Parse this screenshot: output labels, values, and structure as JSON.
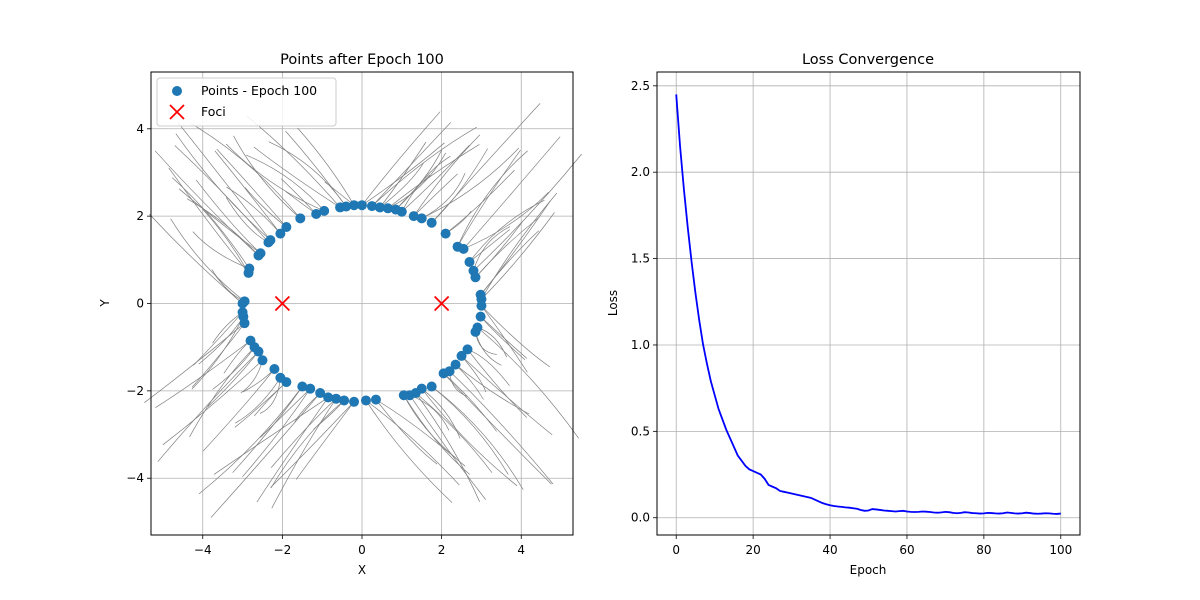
{
  "chart_data": [
    {
      "type": "scatter",
      "title": "Points after Epoch 100",
      "xlabel": "X",
      "ylabel": "Y",
      "xlim": [
        -5.3,
        5.3
      ],
      "ylim": [
        -5.3,
        5.3
      ],
      "xticks": [
        -4,
        -2,
        0,
        2,
        4
      ],
      "yticks": [
        -4,
        -2,
        0,
        2,
        4
      ],
      "xtick_labels": [
        "−4",
        "−2",
        "0",
        "2",
        "4"
      ],
      "ytick_labels": [
        "−4",
        "−2",
        "0",
        "2",
        "4"
      ],
      "grid": true,
      "legend_position": "upper-left",
      "trajectory_color": "#808080",
      "series": [
        {
          "name": "Points - Epoch 100",
          "marker": "circle",
          "color": "#1f77b4",
          "points": [
            [
              -0.2,
              2.25
            ],
            [
              0.0,
              2.25
            ],
            [
              0.25,
              2.23
            ],
            [
              0.45,
              2.2
            ],
            [
              0.65,
              2.18
            ],
            [
              0.85,
              2.15
            ],
            [
              1.0,
              2.1
            ],
            [
              1.3,
              2.0
            ],
            [
              1.5,
              1.95
            ],
            [
              1.75,
              1.85
            ],
            [
              2.1,
              1.6
            ],
            [
              2.4,
              1.3
            ],
            [
              2.55,
              1.25
            ],
            [
              2.7,
              0.95
            ],
            [
              2.8,
              0.75
            ],
            [
              2.85,
              0.6
            ],
            [
              2.98,
              0.2
            ],
            [
              3.0,
              0.1
            ],
            [
              3.0,
              -0.05
            ],
            [
              2.98,
              -0.3
            ],
            [
              2.9,
              -0.55
            ],
            [
              2.85,
              -0.65
            ],
            [
              2.65,
              -1.05
            ],
            [
              2.5,
              -1.2
            ],
            [
              2.35,
              -1.4
            ],
            [
              2.2,
              -1.55
            ],
            [
              2.05,
              -1.6
            ],
            [
              1.75,
              -1.9
            ],
            [
              1.5,
              -1.95
            ],
            [
              1.35,
              -2.05
            ],
            [
              1.2,
              -2.1
            ],
            [
              1.05,
              -2.1
            ],
            [
              0.35,
              -2.2
            ],
            [
              0.1,
              -2.22
            ],
            [
              -0.2,
              -2.25
            ],
            [
              -0.45,
              -2.22
            ],
            [
              -0.65,
              -2.18
            ],
            [
              -0.85,
              -2.15
            ],
            [
              -1.05,
              -2.05
            ],
            [
              -1.3,
              -1.95
            ],
            [
              -1.5,
              -1.9
            ],
            [
              -1.9,
              -1.8
            ],
            [
              -2.05,
              -1.7
            ],
            [
              -2.2,
              -1.5
            ],
            [
              -2.5,
              -1.3
            ],
            [
              -2.6,
              -1.1
            ],
            [
              -2.7,
              -1.0
            ],
            [
              -2.8,
              -0.85
            ],
            [
              -2.95,
              -0.45
            ],
            [
              -2.98,
              -0.3
            ],
            [
              -3.0,
              -0.2
            ],
            [
              -3.0,
              0.0
            ],
            [
              -2.95,
              0.05
            ],
            [
              -2.85,
              0.7
            ],
            [
              -2.83,
              0.8
            ],
            [
              -2.6,
              1.1
            ],
            [
              -2.55,
              1.15
            ],
            [
              -2.35,
              1.4
            ],
            [
              -2.3,
              1.45
            ],
            [
              -2.05,
              1.6
            ],
            [
              -1.9,
              1.75
            ],
            [
              -1.55,
              1.95
            ],
            [
              -1.15,
              2.05
            ],
            [
              -0.95,
              2.12
            ],
            [
              -0.55,
              2.2
            ],
            [
              -0.4,
              2.22
            ]
          ]
        },
        {
          "name": "Foci",
          "marker": "x",
          "color": "#ff0000",
          "points": [
            [
              -2,
              0
            ],
            [
              2,
              0
            ]
          ]
        }
      ]
    },
    {
      "type": "line",
      "title": "Loss Convergence",
      "xlabel": "Epoch",
      "ylabel": "Loss",
      "xlim": [
        -5,
        105
      ],
      "ylim": [
        -0.1,
        2.58
      ],
      "xticks": [
        0,
        20,
        40,
        60,
        80,
        100
      ],
      "yticks": [
        0.0,
        0.5,
        1.0,
        1.5,
        2.0,
        2.5
      ],
      "xtick_labels": [
        "0",
        "20",
        "40",
        "60",
        "80",
        "100"
      ],
      "ytick_labels": [
        "0.0",
        "0.5",
        "1.0",
        "1.5",
        "2.0",
        "2.5"
      ],
      "grid": true,
      "series": [
        {
          "color": "#0000ff",
          "x": [
            0,
            1,
            2,
            3,
            4,
            5,
            6,
            7,
            8,
            9,
            10,
            11,
            12,
            13,
            14,
            15,
            16,
            17,
            18,
            19,
            20,
            21,
            22,
            23,
            24,
            25,
            26,
            27,
            28,
            29,
            30,
            31,
            32,
            33,
            34,
            35,
            36,
            37,
            38,
            39,
            40,
            41,
            42,
            43,
            44,
            45,
            46,
            47,
            48,
            49,
            50,
            51,
            52,
            53,
            54,
            55,
            56,
            57,
            58,
            59,
            60,
            61,
            62,
            63,
            64,
            65,
            66,
            67,
            68,
            69,
            70,
            71,
            72,
            73,
            74,
            75,
            76,
            77,
            78,
            79,
            80,
            81,
            82,
            83,
            84,
            85,
            86,
            87,
            88,
            89,
            90,
            91,
            92,
            93,
            94,
            95,
            96,
            97,
            98,
            99,
            100
          ],
          "y": [
            2.45,
            2.15,
            1.9,
            1.68,
            1.48,
            1.3,
            1.14,
            1.0,
            0.89,
            0.79,
            0.71,
            0.63,
            0.57,
            0.51,
            0.46,
            0.41,
            0.36,
            0.33,
            0.3,
            0.28,
            0.27,
            0.26,
            0.25,
            0.225,
            0.19,
            0.18,
            0.17,
            0.155,
            0.15,
            0.145,
            0.14,
            0.135,
            0.13,
            0.125,
            0.12,
            0.115,
            0.105,
            0.095,
            0.085,
            0.078,
            0.072,
            0.068,
            0.065,
            0.063,
            0.06,
            0.058,
            0.055,
            0.052,
            0.045,
            0.04,
            0.042,
            0.05,
            0.048,
            0.045,
            0.042,
            0.04,
            0.038,
            0.036,
            0.038,
            0.04,
            0.036,
            0.034,
            0.033,
            0.034,
            0.036,
            0.035,
            0.033,
            0.03,
            0.029,
            0.031,
            0.034,
            0.032,
            0.028,
            0.026,
            0.028,
            0.032,
            0.03,
            0.027,
            0.026,
            0.024,
            0.025,
            0.028,
            0.027,
            0.025,
            0.024,
            0.026,
            0.03,
            0.028,
            0.025,
            0.024,
            0.026,
            0.029,
            0.027,
            0.024,
            0.023,
            0.024,
            0.026,
            0.025,
            0.023,
            0.022,
            0.024
          ]
        }
      ]
    }
  ]
}
